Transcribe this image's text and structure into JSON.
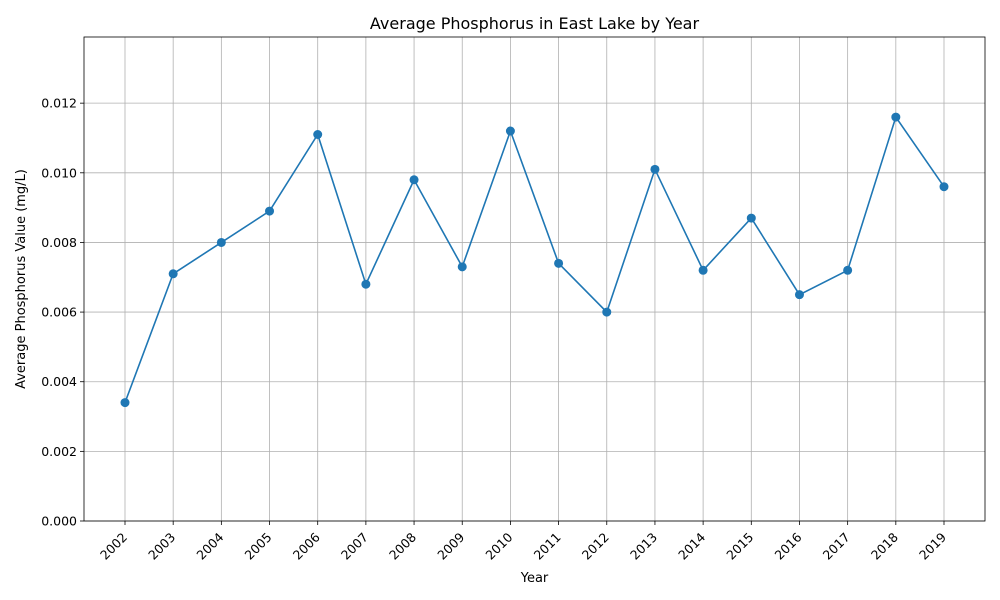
{
  "chart_data": {
    "type": "line",
    "title": "Average Phosphorus in East Lake by Year",
    "xlabel": "Year",
    "ylabel": "Average Phosphorus Value (mg/L)",
    "categories": [
      "2002",
      "2003",
      "2004",
      "2005",
      "2006",
      "2007",
      "2008",
      "2009",
      "2010",
      "2011",
      "2012",
      "2013",
      "2014",
      "2015",
      "2016",
      "2017",
      "2018",
      "2019"
    ],
    "series": [
      {
        "values": [
          0.0034,
          0.0071,
          0.008,
          0.0089,
          0.0111,
          0.0068,
          0.0098,
          0.0073,
          0.0112,
          0.0074,
          0.006,
          0.0101,
          0.0072,
          0.0087,
          0.0065,
          0.0072,
          0.0116,
          0.0096
        ]
      }
    ],
    "ylim": [
      0,
      0.0139
    ],
    "yticks": [
      "0.000",
      "0.002",
      "0.004",
      "0.006",
      "0.008",
      "0.010",
      "0.012"
    ],
    "grid": true,
    "color": "#1f77b4"
  }
}
